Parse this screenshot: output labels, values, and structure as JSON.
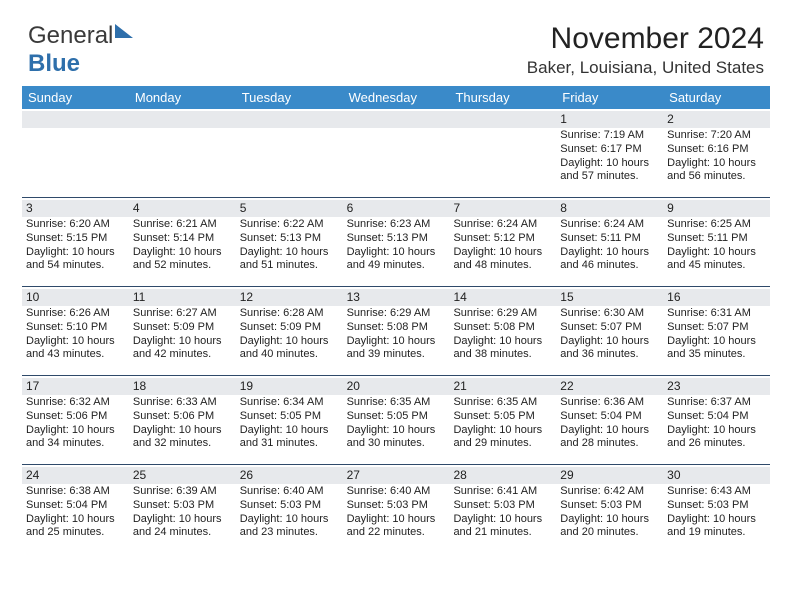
{
  "logo": {
    "text1": "General",
    "text2": "Blue"
  },
  "header": {
    "month_title": "November 2024",
    "location": "Baker, Louisiana, United States"
  },
  "colors": {
    "header_bar": "#3a8ac9",
    "daynum_bg": "#e7e9ec",
    "week_border": "#2f4a6a",
    "logo_accent": "#2e6fab"
  },
  "day_headers": [
    "Sunday",
    "Monday",
    "Tuesday",
    "Wednesday",
    "Thursday",
    "Friday",
    "Saturday"
  ],
  "weeks": [
    [
      {
        "n": "",
        "sunrise": "",
        "sunset": "",
        "daylight": ""
      },
      {
        "n": "",
        "sunrise": "",
        "sunset": "",
        "daylight": ""
      },
      {
        "n": "",
        "sunrise": "",
        "sunset": "",
        "daylight": ""
      },
      {
        "n": "",
        "sunrise": "",
        "sunset": "",
        "daylight": ""
      },
      {
        "n": "",
        "sunrise": "",
        "sunset": "",
        "daylight": ""
      },
      {
        "n": "1",
        "sunrise": "Sunrise: 7:19 AM",
        "sunset": "Sunset: 6:17 PM",
        "daylight": "Daylight: 10 hours and 57 minutes."
      },
      {
        "n": "2",
        "sunrise": "Sunrise: 7:20 AM",
        "sunset": "Sunset: 6:16 PM",
        "daylight": "Daylight: 10 hours and 56 minutes."
      }
    ],
    [
      {
        "n": "3",
        "sunrise": "Sunrise: 6:20 AM",
        "sunset": "Sunset: 5:15 PM",
        "daylight": "Daylight: 10 hours and 54 minutes."
      },
      {
        "n": "4",
        "sunrise": "Sunrise: 6:21 AM",
        "sunset": "Sunset: 5:14 PM",
        "daylight": "Daylight: 10 hours and 52 minutes."
      },
      {
        "n": "5",
        "sunrise": "Sunrise: 6:22 AM",
        "sunset": "Sunset: 5:13 PM",
        "daylight": "Daylight: 10 hours and 51 minutes."
      },
      {
        "n": "6",
        "sunrise": "Sunrise: 6:23 AM",
        "sunset": "Sunset: 5:13 PM",
        "daylight": "Daylight: 10 hours and 49 minutes."
      },
      {
        "n": "7",
        "sunrise": "Sunrise: 6:24 AM",
        "sunset": "Sunset: 5:12 PM",
        "daylight": "Daylight: 10 hours and 48 minutes."
      },
      {
        "n": "8",
        "sunrise": "Sunrise: 6:24 AM",
        "sunset": "Sunset: 5:11 PM",
        "daylight": "Daylight: 10 hours and 46 minutes."
      },
      {
        "n": "9",
        "sunrise": "Sunrise: 6:25 AM",
        "sunset": "Sunset: 5:11 PM",
        "daylight": "Daylight: 10 hours and 45 minutes."
      }
    ],
    [
      {
        "n": "10",
        "sunrise": "Sunrise: 6:26 AM",
        "sunset": "Sunset: 5:10 PM",
        "daylight": "Daylight: 10 hours and 43 minutes."
      },
      {
        "n": "11",
        "sunrise": "Sunrise: 6:27 AM",
        "sunset": "Sunset: 5:09 PM",
        "daylight": "Daylight: 10 hours and 42 minutes."
      },
      {
        "n": "12",
        "sunrise": "Sunrise: 6:28 AM",
        "sunset": "Sunset: 5:09 PM",
        "daylight": "Daylight: 10 hours and 40 minutes."
      },
      {
        "n": "13",
        "sunrise": "Sunrise: 6:29 AM",
        "sunset": "Sunset: 5:08 PM",
        "daylight": "Daylight: 10 hours and 39 minutes."
      },
      {
        "n": "14",
        "sunrise": "Sunrise: 6:29 AM",
        "sunset": "Sunset: 5:08 PM",
        "daylight": "Daylight: 10 hours and 38 minutes."
      },
      {
        "n": "15",
        "sunrise": "Sunrise: 6:30 AM",
        "sunset": "Sunset: 5:07 PM",
        "daylight": "Daylight: 10 hours and 36 minutes."
      },
      {
        "n": "16",
        "sunrise": "Sunrise: 6:31 AM",
        "sunset": "Sunset: 5:07 PM",
        "daylight": "Daylight: 10 hours and 35 minutes."
      }
    ],
    [
      {
        "n": "17",
        "sunrise": "Sunrise: 6:32 AM",
        "sunset": "Sunset: 5:06 PM",
        "daylight": "Daylight: 10 hours and 34 minutes."
      },
      {
        "n": "18",
        "sunrise": "Sunrise: 6:33 AM",
        "sunset": "Sunset: 5:06 PM",
        "daylight": "Daylight: 10 hours and 32 minutes."
      },
      {
        "n": "19",
        "sunrise": "Sunrise: 6:34 AM",
        "sunset": "Sunset: 5:05 PM",
        "daylight": "Daylight: 10 hours and 31 minutes."
      },
      {
        "n": "20",
        "sunrise": "Sunrise: 6:35 AM",
        "sunset": "Sunset: 5:05 PM",
        "daylight": "Daylight: 10 hours and 30 minutes."
      },
      {
        "n": "21",
        "sunrise": "Sunrise: 6:35 AM",
        "sunset": "Sunset: 5:05 PM",
        "daylight": "Daylight: 10 hours and 29 minutes."
      },
      {
        "n": "22",
        "sunrise": "Sunrise: 6:36 AM",
        "sunset": "Sunset: 5:04 PM",
        "daylight": "Daylight: 10 hours and 28 minutes."
      },
      {
        "n": "23",
        "sunrise": "Sunrise: 6:37 AM",
        "sunset": "Sunset: 5:04 PM",
        "daylight": "Daylight: 10 hours and 26 minutes."
      }
    ],
    [
      {
        "n": "24",
        "sunrise": "Sunrise: 6:38 AM",
        "sunset": "Sunset: 5:04 PM",
        "daylight": "Daylight: 10 hours and 25 minutes."
      },
      {
        "n": "25",
        "sunrise": "Sunrise: 6:39 AM",
        "sunset": "Sunset: 5:03 PM",
        "daylight": "Daylight: 10 hours and 24 minutes."
      },
      {
        "n": "26",
        "sunrise": "Sunrise: 6:40 AM",
        "sunset": "Sunset: 5:03 PM",
        "daylight": "Daylight: 10 hours and 23 minutes."
      },
      {
        "n": "27",
        "sunrise": "Sunrise: 6:40 AM",
        "sunset": "Sunset: 5:03 PM",
        "daylight": "Daylight: 10 hours and 22 minutes."
      },
      {
        "n": "28",
        "sunrise": "Sunrise: 6:41 AM",
        "sunset": "Sunset: 5:03 PM",
        "daylight": "Daylight: 10 hours and 21 minutes."
      },
      {
        "n": "29",
        "sunrise": "Sunrise: 6:42 AM",
        "sunset": "Sunset: 5:03 PM",
        "daylight": "Daylight: 10 hours and 20 minutes."
      },
      {
        "n": "30",
        "sunrise": "Sunrise: 6:43 AM",
        "sunset": "Sunset: 5:03 PM",
        "daylight": "Daylight: 10 hours and 19 minutes."
      }
    ]
  ]
}
